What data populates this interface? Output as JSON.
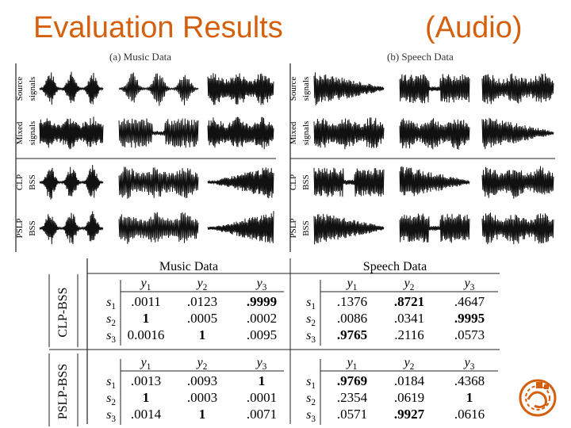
{
  "slide": {
    "title_left": "Evaluation Results",
    "title_right": "(Audio)",
    "accent_color": "#d4600e"
  },
  "waveform_figure": {
    "panels": [
      {
        "title": "(a) Music Data",
        "rows": [
          {
            "line1": "Source",
            "line2": "signals"
          },
          {
            "line1": "Mixed",
            "line2": "signals"
          },
          {
            "line1": "CLP",
            "line2": "BSS"
          },
          {
            "line1": "PSLP",
            "line2": "BSS"
          }
        ]
      },
      {
        "title": "(b) Speech Data",
        "rows": [
          {
            "line1": "Source",
            "line2": "signals"
          },
          {
            "line1": "Mixed",
            "line2": "signals"
          },
          {
            "line1": "CLP",
            "line2": "BSS"
          },
          {
            "line1": "PSLP",
            "line2": "BSS"
          }
        ]
      }
    ]
  },
  "results_table": {
    "groups": [
      "Music Data",
      "Speech Data"
    ],
    "col_headers": [
      {
        "base": "y",
        "sub": "1"
      },
      {
        "base": "y",
        "sub": "2"
      },
      {
        "base": "y",
        "sub": "3"
      }
    ],
    "row_headers": [
      {
        "base": "s",
        "sub": "1"
      },
      {
        "base": "s",
        "sub": "2"
      },
      {
        "base": "s",
        "sub": "3"
      }
    ],
    "methods": [
      {
        "name": "CLP-BSS",
        "music": [
          [
            ".0011",
            ".0123",
            ".9999"
          ],
          [
            "1",
            ".0005",
            ".0002"
          ],
          [
            "0.0016",
            "1",
            ".0095"
          ]
        ],
        "music_bold": [
          [
            false,
            false,
            true
          ],
          [
            true,
            false,
            false
          ],
          [
            false,
            true,
            false
          ]
        ],
        "speech": [
          [
            ".1376",
            ".8721",
            ".4647"
          ],
          [
            ".0086",
            ".0341",
            ".9995"
          ],
          [
            ".9765",
            ".2116",
            ".0573"
          ]
        ],
        "speech_bold": [
          [
            false,
            true,
            false
          ],
          [
            false,
            false,
            true
          ],
          [
            true,
            false,
            false
          ]
        ]
      },
      {
        "name": "PSLP-BSS",
        "music": [
          [
            ".0013",
            ".0093",
            "1"
          ],
          [
            "1",
            ".0003",
            ".0001"
          ],
          [
            ".0014",
            "1",
            ".0071"
          ]
        ],
        "music_bold": [
          [
            false,
            false,
            true
          ],
          [
            true,
            false,
            false
          ],
          [
            false,
            true,
            false
          ]
        ],
        "speech": [
          [
            ".9769",
            ".0184",
            ".4368"
          ],
          [
            ".2354",
            ".0619",
            "1"
          ],
          [
            ".0571",
            ".9927",
            ".0616"
          ]
        ],
        "speech_bold": [
          [
            true,
            false,
            false
          ],
          [
            false,
            false,
            true
          ],
          [
            false,
            true,
            false
          ]
        ]
      }
    ]
  },
  "logo": {
    "icon": "university-seal-icon",
    "color": "#d4600e"
  }
}
